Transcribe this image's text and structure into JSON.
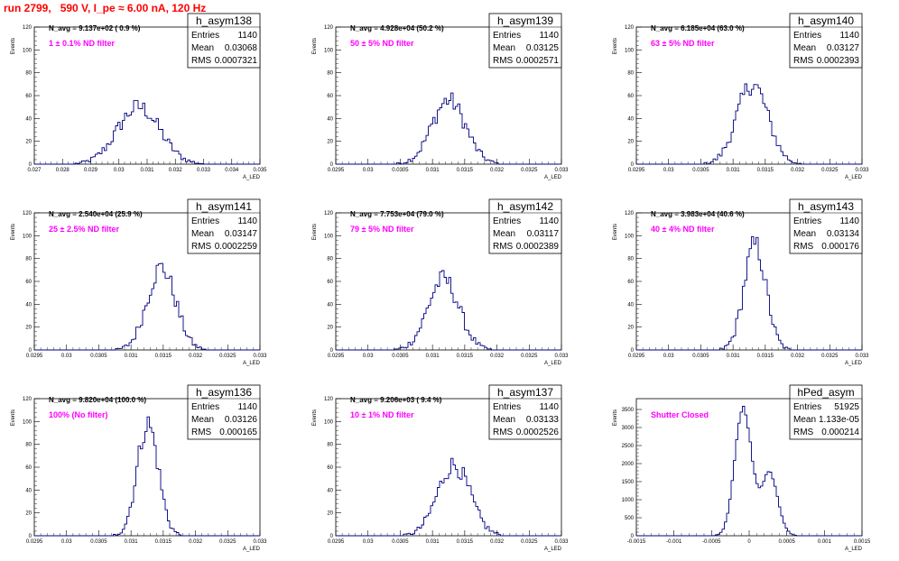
{
  "page_title": "run 2799,   590 V, I_pe ≈ 6.00 nA, 120 Hz",
  "colors": {
    "title": "#ff0000",
    "histogram": "#000080",
    "annotation": "#ff00ff"
  },
  "chart_data": [
    {
      "type": "bar",
      "name": "h_asym138",
      "navg": "N_avg = 9.137e+02 ( 0.9 %)",
      "filter_label": "1 ± 0.1% ND filter",
      "stats": {
        "entries": "1140",
        "mean": "0.03068",
        "rms": "0.0007321"
      },
      "xlabel": "A_LED",
      "ylabel": "Events",
      "xlim": [
        0.027,
        0.035
      ],
      "ylim": [
        0,
        120
      ],
      "xticks": [
        "0.027",
        "0.028",
        "0.029",
        "0.03",
        "0.031",
        "0.032",
        "0.033",
        "0.034",
        "0.035"
      ],
      "yticks": [
        "0",
        "20",
        "40",
        "60",
        "80",
        "100",
        "120"
      ],
      "peak": {
        "center": 0.0307,
        "width": 0.00075,
        "height": 50
      }
    },
    {
      "type": "bar",
      "name": "h_asym139",
      "navg": "N_avg = 4.928e+04 (50.2 %)",
      "filter_label": "50 ± 5% ND filter",
      "stats": {
        "entries": "1140",
        "mean": "0.03125",
        "rms": "0.0002571"
      },
      "xlabel": "A_LED",
      "ylabel": "Events",
      "xlim": [
        0.0295,
        0.033
      ],
      "ylim": [
        0,
        120
      ],
      "xticks": [
        "0.0295",
        "0.03",
        "0.0305",
        "0.031",
        "0.0315",
        "0.032",
        "0.0325",
        "0.033"
      ],
      "yticks": [
        "0",
        "20",
        "40",
        "60",
        "80",
        "100",
        "120"
      ],
      "peak": {
        "center": 0.03125,
        "width": 0.00026,
        "height": 56
      }
    },
    {
      "type": "bar",
      "name": "h_asym140",
      "navg": "N_avg = 6.185e+04 (63.0 %)",
      "filter_label": "63 ± 5% ND filter",
      "stats": {
        "entries": "1140",
        "mean": "0.03127",
        "rms": "0.0002393"
      },
      "xlabel": "A_LED",
      "ylabel": "Events",
      "xlim": [
        0.0295,
        0.033
      ],
      "ylim": [
        0,
        120
      ],
      "xticks": [
        "0.0295",
        "0.03",
        "0.0305",
        "0.031",
        "0.0315",
        "0.032",
        "0.0325",
        "0.033"
      ],
      "yticks": [
        "0",
        "20",
        "40",
        "60",
        "80",
        "100",
        "120"
      ],
      "peak": {
        "center": 0.0313,
        "width": 0.00024,
        "height": 70
      }
    },
    {
      "type": "bar",
      "name": "h_asym141",
      "navg": "N_avg = 2.540e+04 (25.9 %)",
      "filter_label": "25 ± 2.5% ND filter",
      "stats": {
        "entries": "1140",
        "mean": "0.03147",
        "rms": "0.0002259"
      },
      "xlabel": "A_LED",
      "ylabel": "Events",
      "xlim": [
        0.0295,
        0.033
      ],
      "ylim": [
        0,
        120
      ],
      "xticks": [
        "0.0295",
        "0.03",
        "0.0305",
        "0.031",
        "0.0315",
        "0.032",
        "0.0325",
        "0.033"
      ],
      "yticks": [
        "0",
        "20",
        "40",
        "60",
        "80",
        "100",
        "120"
      ],
      "peak": {
        "center": 0.03147,
        "width": 0.00022,
        "height": 72
      }
    },
    {
      "type": "bar",
      "name": "h_asym142",
      "navg": "N_avg = 7.753e+04 (79.0 %)",
      "filter_label": "79 ± 5% ND filter",
      "stats": {
        "entries": "1140",
        "mean": "0.03117",
        "rms": "0.0002389"
      },
      "xlabel": "A_LED",
      "ylabel": "Events",
      "xlim": [
        0.0295,
        0.033
      ],
      "ylim": [
        0,
        120
      ],
      "xticks": [
        "0.0295",
        "0.03",
        "0.0305",
        "0.031",
        "0.0315",
        "0.032",
        "0.0325",
        "0.033"
      ],
      "yticks": [
        "0",
        "20",
        "40",
        "60",
        "80",
        "100",
        "120"
      ],
      "peak": {
        "center": 0.03117,
        "width": 0.00024,
        "height": 62
      }
    },
    {
      "type": "bar",
      "name": "h_asym143",
      "navg": "N_avg = 3.983e+04 (40.6 %)",
      "filter_label": "40 ± 4% ND filter",
      "stats": {
        "entries": "1140",
        "mean": "0.03134",
        "rms": "0.000176"
      },
      "xlabel": "A_LED",
      "ylabel": "Events",
      "xlim": [
        0.0295,
        0.033
      ],
      "ylim": [
        0,
        120
      ],
      "xticks": [
        "0.0295",
        "0.03",
        "0.0305",
        "0.031",
        "0.0315",
        "0.032",
        "0.0325",
        "0.033"
      ],
      "yticks": [
        "0",
        "20",
        "40",
        "60",
        "80",
        "100",
        "120"
      ],
      "peak": {
        "center": 0.03134,
        "width": 0.00017,
        "height": 92
      }
    },
    {
      "type": "bar",
      "name": "h_asym136",
      "navg": "N_avg = 9.820e+04 (100.0 %)",
      "filter_label": "100% (No filter)",
      "stats": {
        "entries": "1140",
        "mean": "0.03126",
        "rms": "0.000165"
      },
      "xlabel": "A_LED",
      "ylabel": "Events",
      "xlim": [
        0.0295,
        0.033
      ],
      "ylim": [
        0,
        120
      ],
      "xticks": [
        "0.0295",
        "0.03",
        "0.0305",
        "0.031",
        "0.0315",
        "0.032",
        "0.0325",
        "0.033"
      ],
      "yticks": [
        "0",
        "20",
        "40",
        "60",
        "80",
        "100",
        "120"
      ],
      "peak": {
        "center": 0.03126,
        "width": 0.000165,
        "height": 98
      }
    },
    {
      "type": "bar",
      "name": "h_asym137",
      "navg": "N_avg = 9.206e+03 ( 9.4 %)",
      "filter_label": "10 ± 1% ND filter",
      "stats": {
        "entries": "1140",
        "mean": "0.03133",
        "rms": "0.0002526"
      },
      "xlabel": "A_LED",
      "ylabel": "Events",
      "xlim": [
        0.0295,
        0.033
      ],
      "ylim": [
        0,
        120
      ],
      "xticks": [
        "0.0295",
        "0.03",
        "0.0305",
        "0.031",
        "0.0315",
        "0.032",
        "0.0325",
        "0.033"
      ],
      "yticks": [
        "0",
        "20",
        "40",
        "60",
        "80",
        "100",
        "120"
      ],
      "peak": {
        "center": 0.03133,
        "width": 0.00025,
        "height": 62
      }
    },
    {
      "type": "bar",
      "name": "hPed_asym",
      "navg": "",
      "filter_label": "Shutter Closed",
      "stats": {
        "entries": "51925",
        "mean": "1.133e-05",
        "rms": "0.000214"
      },
      "xlabel": "A_LED",
      "ylabel": "Events",
      "xlim": [
        -0.0015,
        0.0015
      ],
      "ylim": [
        0,
        3800
      ],
      "xticks": [
        "-0.0015",
        "-0.001",
        "-0.0005",
        "0",
        "0.0005",
        "0.001",
        "0.0015"
      ],
      "yticks": [
        "0",
        "500",
        "1000",
        "1500",
        "2000",
        "2500",
        "3000",
        "3500"
      ],
      "peaks": [
        {
          "center": -8e-05,
          "width": 0.00011,
          "height": 3550
        },
        {
          "center": 0.00027,
          "width": 0.00011,
          "height": 1750
        }
      ]
    }
  ]
}
